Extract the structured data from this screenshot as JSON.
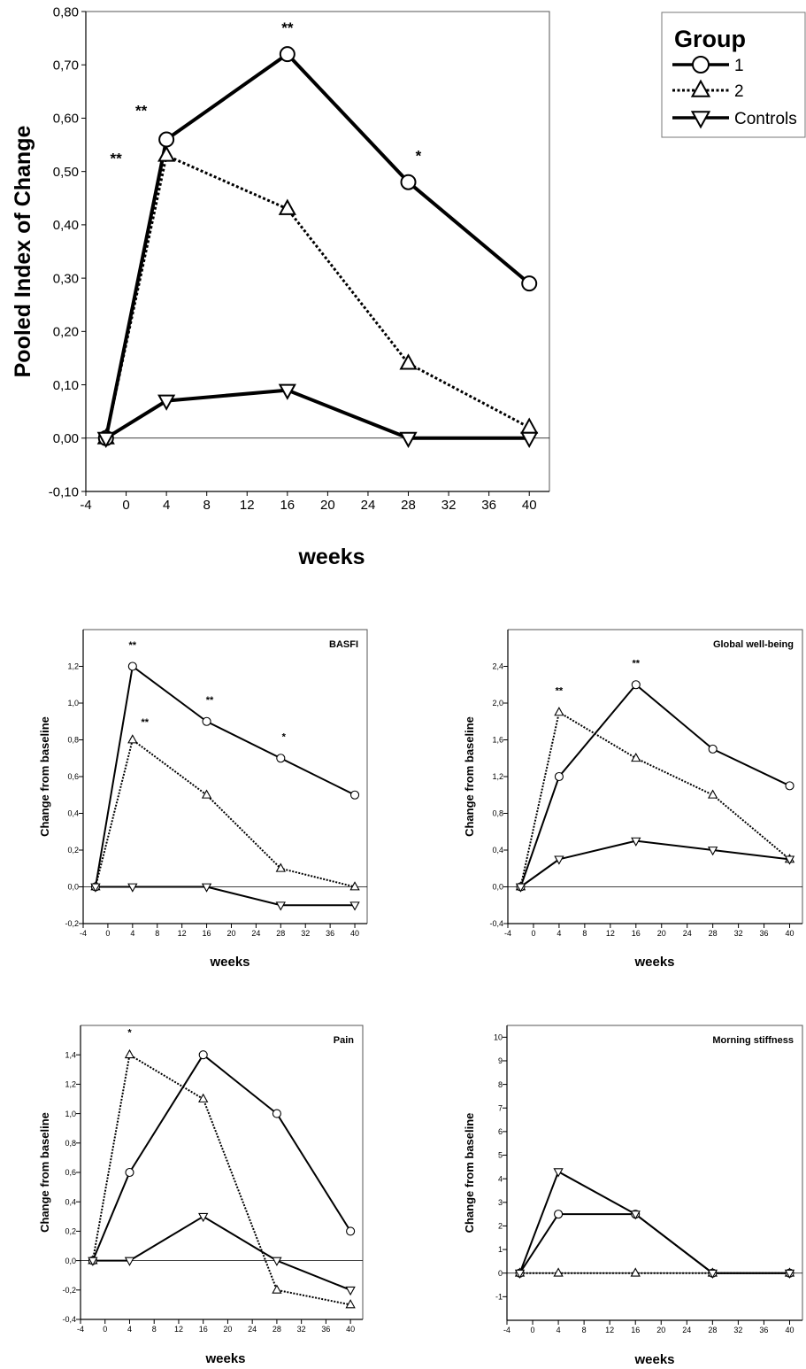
{
  "legend": {
    "title": "Group",
    "entries": [
      {
        "label": "1",
        "marker": "circle",
        "style": "solid"
      },
      {
        "label": "2",
        "marker": "triangle-up",
        "style": "dotted"
      },
      {
        "label": "Controls",
        "marker": "triangle-down",
        "style": "solid"
      }
    ]
  },
  "chart_data": [
    {
      "type": "line",
      "title": "",
      "xlabel": "weeks",
      "ylabel": "Pooled Index of Change",
      "xlim": [
        -4,
        42
      ],
      "ylim": [
        -0.1,
        0.8
      ],
      "xticks": [
        -4,
        0,
        4,
        8,
        12,
        16,
        20,
        24,
        28,
        32,
        36,
        40
      ],
      "yticks": [
        -0.1,
        0.0,
        0.1,
        0.2,
        0.3,
        0.4,
        0.5,
        0.6,
        0.7,
        0.8
      ],
      "ytick_labels": [
        "-0,10",
        "0,00",
        "0,10",
        "0,20",
        "0,30",
        "0,40",
        "0,50",
        "0,60",
        "0,70",
        "0,80"
      ],
      "x": [
        -2,
        4,
        16,
        28,
        40
      ],
      "series": [
        {
          "name": "1",
          "values": [
            0.0,
            0.56,
            0.72,
            0.48,
            0.29
          ]
        },
        {
          "name": "2",
          "values": [
            0.0,
            0.53,
            0.43,
            0.14,
            0.02
          ]
        },
        {
          "name": "Controls",
          "values": [
            0.0,
            0.07,
            0.09,
            0.0,
            0.0
          ]
        }
      ],
      "annotations": [
        {
          "x": 16,
          "y": 0.76,
          "text": "**"
        },
        {
          "x": 1.5,
          "y": 0.605,
          "text": "**"
        },
        {
          "x": -1,
          "y": 0.515,
          "text": "**"
        },
        {
          "x": 29,
          "y": 0.52,
          "text": "*"
        }
      ]
    },
    {
      "type": "line",
      "title": "BASFI",
      "xlabel": "weeks",
      "ylabel": "Change from baseline",
      "xlim": [
        -4,
        42
      ],
      "ylim": [
        -0.2,
        1.4
      ],
      "xticks": [
        -4,
        0,
        4,
        8,
        12,
        16,
        20,
        24,
        28,
        32,
        36,
        40
      ],
      "yticks": [
        -0.2,
        0.0,
        0.2,
        0.4,
        0.6,
        0.8,
        1.0,
        1.2
      ],
      "ytick_labels": [
        "-0,2",
        "0,0",
        "0,2",
        "0,4",
        "0,6",
        "0,8",
        "1,0",
        "1,2"
      ],
      "x": [
        -2,
        4,
        16,
        28,
        40
      ],
      "series": [
        {
          "name": "1",
          "values": [
            0.0,
            1.2,
            0.9,
            0.7,
            0.5
          ]
        },
        {
          "name": "2",
          "values": [
            0.0,
            0.8,
            0.5,
            0.1,
            0.0
          ]
        },
        {
          "name": "Controls",
          "values": [
            0.0,
            0.0,
            0.0,
            -0.1,
            -0.1
          ]
        }
      ],
      "annotations": [
        {
          "x": 4,
          "y": 1.3,
          "text": "**"
        },
        {
          "x": 16.5,
          "y": 1.0,
          "text": "**"
        },
        {
          "x": 6,
          "y": 0.88,
          "text": "**"
        },
        {
          "x": 28.5,
          "y": 0.8,
          "text": "*"
        }
      ]
    },
    {
      "type": "line",
      "title": "Global well-being",
      "xlabel": "weeks",
      "ylabel": "Change from baseline",
      "xlim": [
        -4,
        42
      ],
      "ylim": [
        -0.4,
        2.8
      ],
      "xticks": [
        -4,
        0,
        4,
        8,
        12,
        16,
        20,
        24,
        28,
        32,
        36,
        40
      ],
      "yticks": [
        -0.4,
        0.0,
        0.4,
        0.8,
        1.2,
        1.6,
        2.0,
        2.4
      ],
      "ytick_labels": [
        "-0,4",
        "0,0",
        "0,4",
        "0,8",
        "1,2",
        "1,6",
        "2,0",
        "2,4"
      ],
      "x": [
        -2,
        4,
        16,
        28,
        40
      ],
      "series": [
        {
          "name": "1",
          "values": [
            0.0,
            1.2,
            2.2,
            1.5,
            1.1
          ]
        },
        {
          "name": "2",
          "values": [
            0.0,
            1.9,
            1.4,
            1.0,
            0.3
          ]
        },
        {
          "name": "Controls",
          "values": [
            0.0,
            0.3,
            0.5,
            0.4,
            0.3
          ]
        }
      ],
      "annotations": [
        {
          "x": 4,
          "y": 2.1,
          "text": "**"
        },
        {
          "x": 16,
          "y": 2.4,
          "text": "**"
        }
      ]
    },
    {
      "type": "line",
      "title": "Pain",
      "xlabel": "weeks",
      "ylabel": "Change from baseline",
      "xlim": [
        -4,
        42
      ],
      "ylim": [
        -0.4,
        1.6
      ],
      "xticks": [
        -4,
        0,
        4,
        8,
        12,
        16,
        20,
        24,
        28,
        32,
        36,
        40
      ],
      "yticks": [
        -0.4,
        -0.2,
        0.0,
        0.2,
        0.4,
        0.6,
        0.8,
        1.0,
        1.2,
        1.4
      ],
      "ytick_labels": [
        "-0,4",
        "-0,2",
        "0,0",
        "0,2",
        "0,4",
        "0,6",
        "0,8",
        "1,0",
        "1,2",
        "1,4"
      ],
      "x": [
        -2,
        4,
        16,
        28,
        40
      ],
      "series": [
        {
          "name": "1",
          "values": [
            0.0,
            0.6,
            1.4,
            1.0,
            0.2
          ]
        },
        {
          "name": "2",
          "values": [
            0.0,
            1.4,
            1.1,
            -0.2,
            -0.3
          ]
        },
        {
          "name": "Controls",
          "values": [
            0.0,
            0.0,
            0.3,
            0.0,
            -0.2
          ]
        }
      ],
      "annotations": [
        {
          "x": 4,
          "y": 1.53,
          "text": "*"
        }
      ]
    },
    {
      "type": "line",
      "title": "Morning stiffness",
      "xlabel": "weeks",
      "ylabel": "Change from baseline",
      "xlim": [
        -4,
        42
      ],
      "ylim": [
        -2,
        10.5
      ],
      "xticks": [
        -4,
        0,
        4,
        8,
        12,
        16,
        20,
        24,
        28,
        32,
        36,
        40
      ],
      "yticks": [
        -1,
        0,
        1,
        2,
        3,
        4,
        5,
        6,
        7,
        8,
        9,
        10
      ],
      "ytick_labels": [
        "-1",
        "0",
        "1",
        "2",
        "3",
        "4",
        "5",
        "6",
        "7",
        "8",
        "9",
        "10"
      ],
      "x": [
        -2,
        4,
        16,
        28,
        40
      ],
      "series": [
        {
          "name": "1",
          "values": [
            0,
            2.5,
            2.5,
            0,
            0
          ]
        },
        {
          "name": "2",
          "values": [
            0,
            0,
            0,
            0,
            0
          ]
        },
        {
          "name": "Controls",
          "values": [
            0,
            4.3,
            2.5,
            0,
            0
          ]
        }
      ],
      "annotations": []
    }
  ]
}
